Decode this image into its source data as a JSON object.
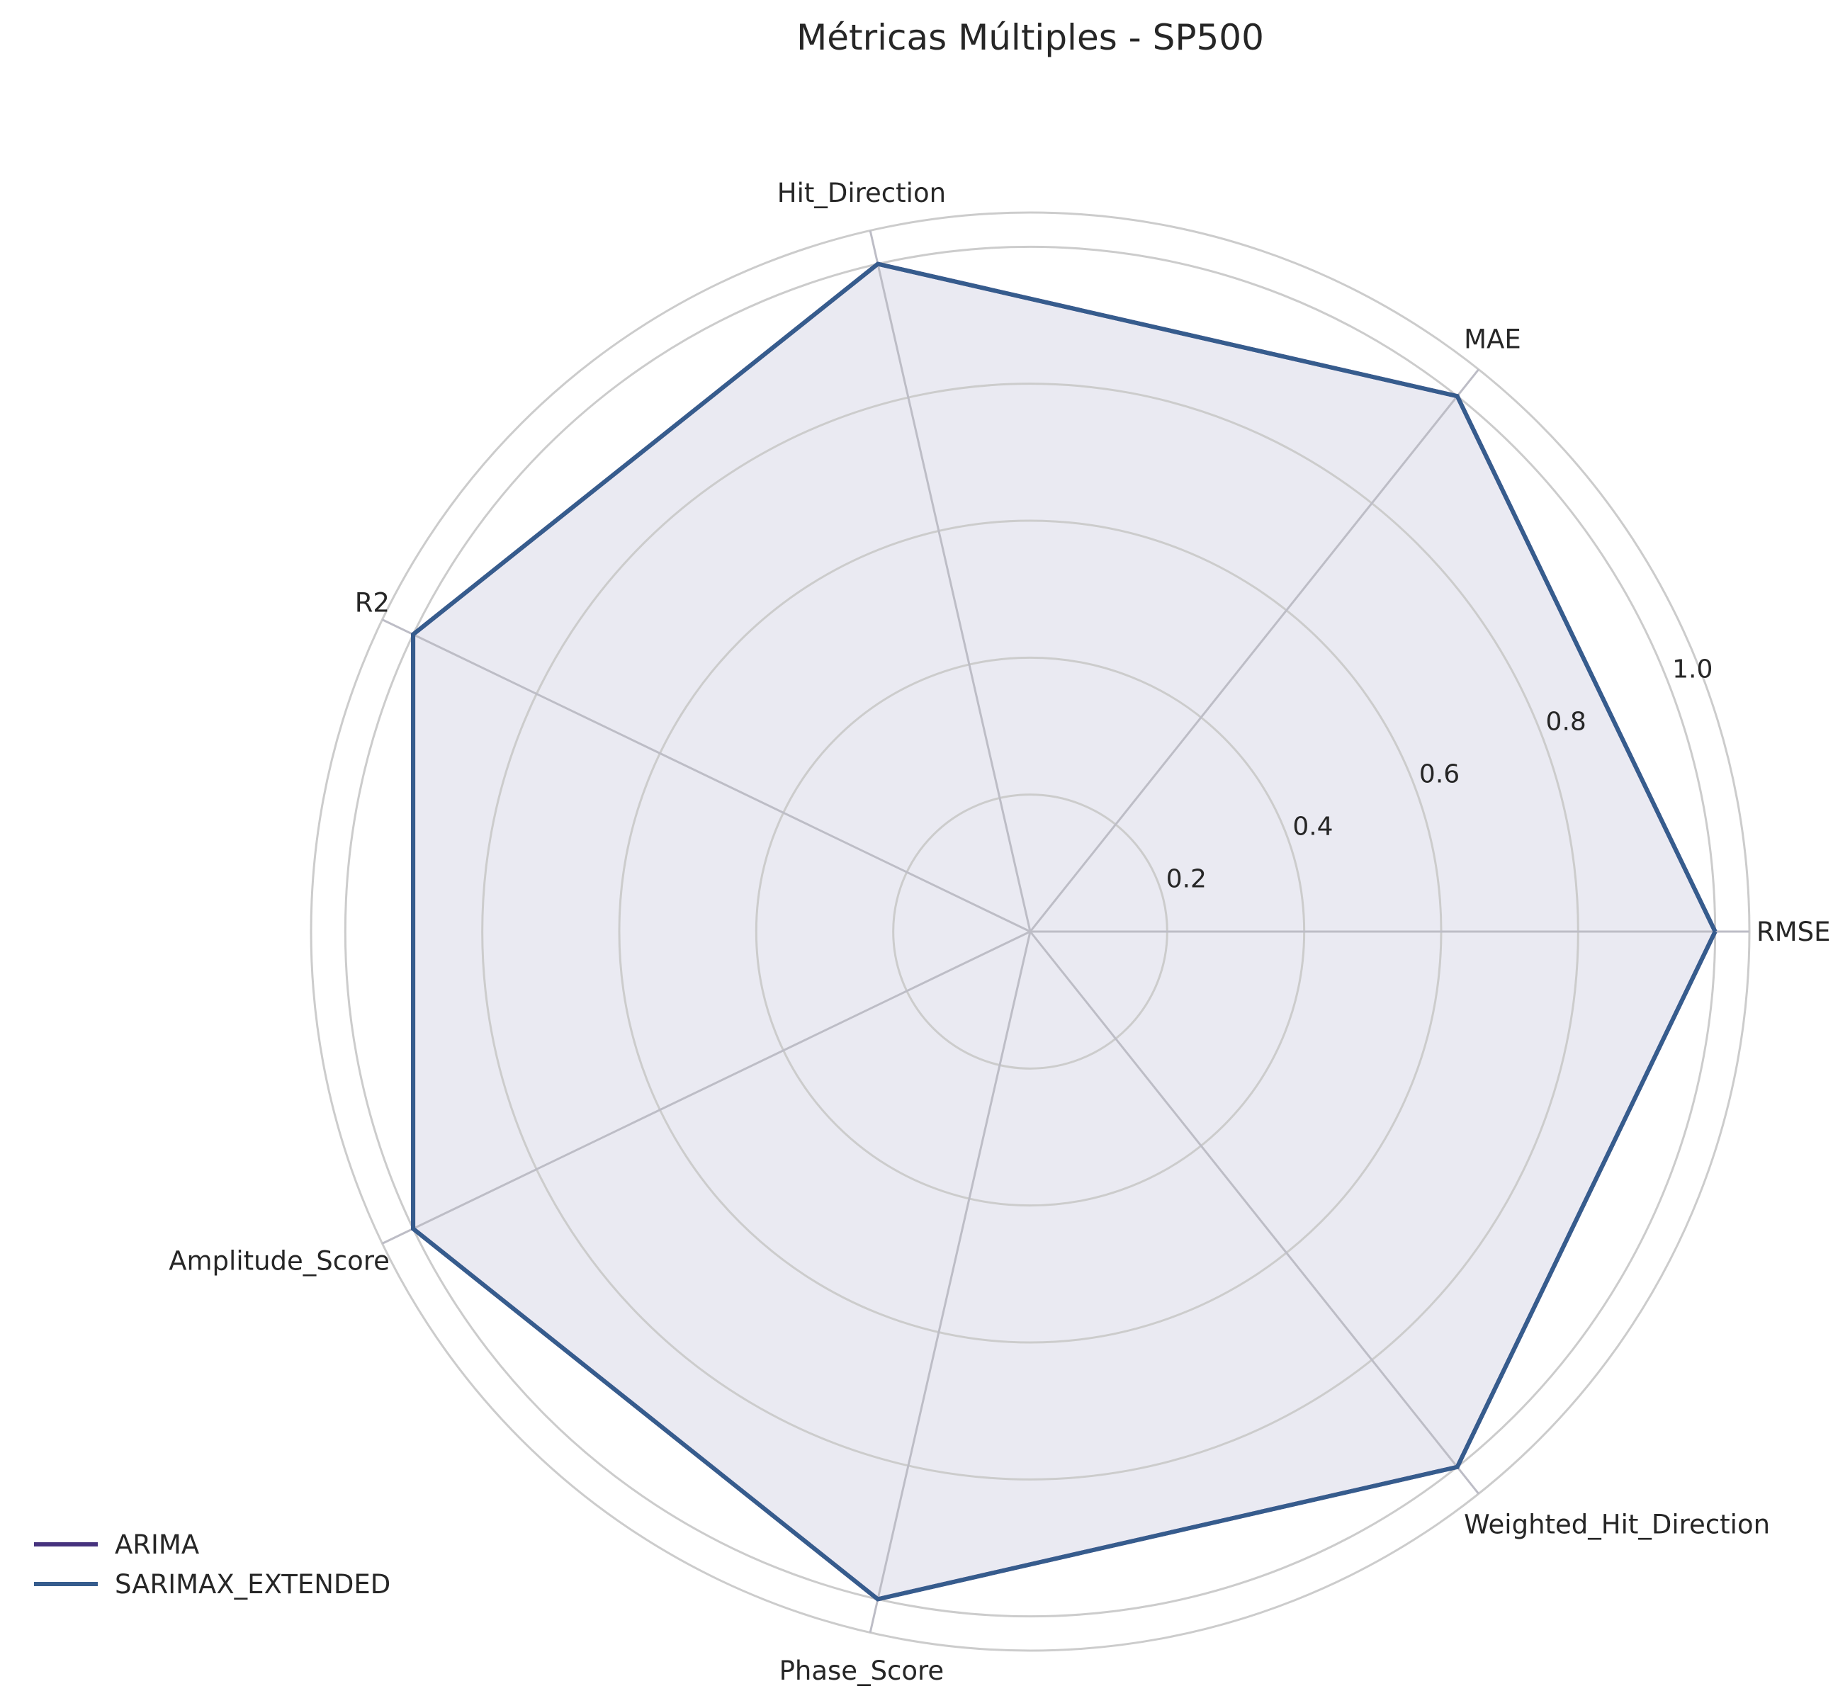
{
  "chart_data": {
    "type": "radar",
    "title": "Métricas Múltiples - SP500",
    "axes": [
      "RMSE",
      "MAE",
      "Hit_Direction",
      "R2",
      "Amplitude_Score",
      "Phase_Score",
      "Weighted_Hit_Direction"
    ],
    "radial_ticks": [
      0.2,
      0.4,
      0.6,
      0.8,
      1.0
    ],
    "radial_tick_labels": [
      "0.2",
      "0.4",
      "0.6",
      "0.8",
      "1.0"
    ],
    "rlim": [
      0,
      1.05
    ],
    "grid": true,
    "legend_position": "bottom-left",
    "series": [
      {
        "name": "ARIMA",
        "color": "#46327e",
        "values": [
          1,
          1,
          1,
          1,
          1,
          1,
          1
        ]
      },
      {
        "name": "SARIMAX_EXTENDED",
        "color": "#365c8d",
        "values": [
          1,
          1,
          1,
          1,
          1,
          1,
          1
        ]
      }
    ],
    "fill_color": "#eaeaf2",
    "grid_color": "#cccccc",
    "axis_line_color": "#bdbdc6"
  }
}
